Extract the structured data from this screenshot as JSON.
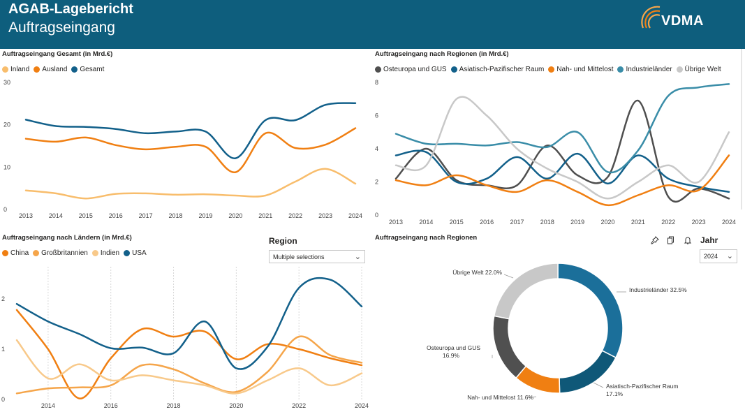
{
  "header": {
    "title": "AGAB-Lagebericht",
    "subtitle": "Auftragseingang",
    "logo_text": "VDMA",
    "bg_color": "#0e5e7d"
  },
  "panels": {
    "gesamt": {
      "title": "Auftragseingang Gesamt (in Mrd.€)"
    },
    "regionen": {
      "title": "Auftragseingang nach Regionen (in Mrd.€)"
    },
    "laender": {
      "title": "Auftragseingang nach Ländern (in Mrd.€)"
    },
    "donut": {
      "title": "Auftragseingang nach Regionen"
    }
  },
  "filters": {
    "region": {
      "label": "Region",
      "value": "Multiple selections"
    },
    "jahr": {
      "label": "Jahr",
      "value": "2024"
    }
  },
  "icons": [
    "pin-icon",
    "copy-icon",
    "bell-icon",
    "chevron-down-icon"
  ],
  "chart_data": [
    {
      "id": "gesamt",
      "type": "line",
      "title": "Auftragseingang Gesamt (in Mrd.€)",
      "x": [
        2013,
        2014,
        2015,
        2016,
        2017,
        2018,
        2019,
        2020,
        2021,
        2022,
        2023,
        2024
      ],
      "x_ticks": [
        "2013",
        "2014",
        "2015",
        "2016",
        "2017",
        "2018",
        "2019",
        "2020",
        "2021",
        "2022",
        "2023",
        "2024"
      ],
      "y_ticks": [
        "0",
        "10",
        "20",
        "30"
      ],
      "ylim": [
        0,
        30
      ],
      "grid": false,
      "legend": "top-left",
      "series": [
        {
          "name": "Inland",
          "color": "#f8bd6c",
          "values": [
            4.5,
            3.8,
            2.6,
            3.7,
            3.8,
            3.5,
            3.6,
            3.3,
            3.3,
            6.6,
            9.6,
            6.1
          ]
        },
        {
          "name": "Ausland",
          "color": "#f07f12",
          "values": [
            16.7,
            16.0,
            17.0,
            15.2,
            14.2,
            14.8,
            14.8,
            8.8,
            18.0,
            14.5,
            15.3,
            19.2
          ]
        },
        {
          "name": "Gesamt",
          "color": "#12608a",
          "values": [
            21.2,
            19.7,
            19.5,
            19.0,
            18.0,
            18.4,
            18.4,
            12.1,
            21.1,
            21.1,
            24.7,
            25.1
          ]
        }
      ]
    },
    {
      "id": "regionen",
      "type": "line",
      "title": "Auftragseingang nach Regionen (in Mrd.€)",
      "x": [
        2013,
        2014,
        2015,
        2016,
        2017,
        2018,
        2019,
        2020,
        2021,
        2022,
        2023,
        2024
      ],
      "x_ticks": [
        "2013",
        "2014",
        "2015",
        "2016",
        "2017",
        "2018",
        "2019",
        "2020",
        "2021",
        "2022",
        "2023",
        "2024"
      ],
      "y_ticks": [
        "0",
        "2",
        "4",
        "6",
        "8"
      ],
      "ylim": [
        0,
        8
      ],
      "grid": false,
      "legend": "top-left",
      "series": [
        {
          "name": "Osteuropa und GUS",
          "color": "#4f4f4f",
          "values": [
            2.2,
            4.0,
            2.1,
            1.8,
            1.8,
            4.2,
            2.4,
            2.3,
            6.9,
            1.1,
            1.6,
            1.0
          ]
        },
        {
          "name": "Asiatisch-Pazifischer Raum",
          "color": "#12608a",
          "values": [
            3.6,
            3.8,
            2.0,
            2.2,
            3.5,
            2.2,
            3.7,
            1.9,
            3.6,
            2.2,
            1.7,
            1.4
          ]
        },
        {
          "name": "Nah- und Mittelost",
          "color": "#f07f12",
          "values": [
            2.1,
            1.8,
            2.4,
            1.8,
            1.4,
            2.1,
            1.4,
            0.6,
            1.2,
            1.8,
            1.5,
            3.6
          ]
        },
        {
          "name": "Industrieländer",
          "color": "#3a8da8",
          "values": [
            4.9,
            4.3,
            4.3,
            4.2,
            4.4,
            4.1,
            5.0,
            2.6,
            3.9,
            7.2,
            7.7,
            7.9
          ]
        },
        {
          "name": "Übrige Welt",
          "color": "#c8c8c8",
          "values": [
            3.0,
            3.0,
            7.0,
            6.0,
            4.0,
            2.8,
            2.0,
            1.0,
            2.0,
            3.0,
            2.0,
            5.0
          ]
        }
      ]
    },
    {
      "id": "laender",
      "type": "line",
      "title": "Auftragseingang nach Ländern (in Mrd.€)",
      "x": [
        2013,
        2014,
        2015,
        2016,
        2017,
        2018,
        2019,
        2020,
        2021,
        2022,
        2023,
        2024
      ],
      "x_ticks": [
        "2014",
        "2016",
        "2018",
        "2020",
        "2022",
        "2024"
      ],
      "y_ticks": [
        "0",
        "1",
        "2"
      ],
      "ylim": [
        0,
        2.5
      ],
      "grid": true,
      "legend": "top-left",
      "series": [
        {
          "name": "China",
          "color": "#f07f12",
          "values": [
            1.78,
            1.0,
            0.02,
            0.82,
            1.4,
            1.25,
            1.35,
            0.8,
            1.1,
            1.0,
            0.82,
            0.68
          ]
        },
        {
          "name": "Großbritannien",
          "color": "#f5a54a",
          "values": [
            0.12,
            0.22,
            0.24,
            0.28,
            0.68,
            0.6,
            0.32,
            0.15,
            0.55,
            1.25,
            0.88,
            0.73
          ]
        },
        {
          "name": "Indien",
          "color": "#f8c98a",
          "values": [
            1.18,
            0.42,
            0.7,
            0.38,
            0.48,
            0.38,
            0.28,
            0.12,
            0.38,
            0.62,
            0.28,
            0.52
          ]
        },
        {
          "name": "USA",
          "color": "#12608a",
          "values": [
            1.9,
            1.55,
            1.3,
            1.02,
            1.03,
            0.92,
            1.55,
            0.62,
            1.05,
            2.22,
            2.38,
            1.85
          ]
        }
      ]
    },
    {
      "id": "donut",
      "type": "pie",
      "title": "Auftragseingang nach Regionen",
      "slices": [
        {
          "name": "Industrieländer",
          "value": 32.5,
          "label": "Industrieländer 32.5%",
          "color": "#1b6f9a"
        },
        {
          "name": "Asiatisch-Pazifischer Raum",
          "value": 17.1,
          "label": "Asiatisch-Pazifischer Raum 17.1%",
          "color": "#0f5878"
        },
        {
          "name": "Nah- und Mittelost",
          "value": 11.6,
          "label": "Nah- und Mittelost 11.6%",
          "color": "#f07f12"
        },
        {
          "name": "Osteuropa und GUS",
          "value": 16.9,
          "label": "Osteuropa und GUS 16.9%",
          "color": "#505050"
        },
        {
          "name": "Übrige Welt",
          "value": 22.0,
          "label": "Übrige Welt 22.0%",
          "color": "#c8c8c8"
        }
      ]
    }
  ]
}
